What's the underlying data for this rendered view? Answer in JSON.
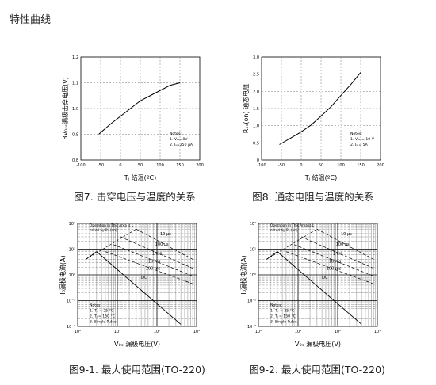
{
  "page": {
    "heading": "特性曲线"
  },
  "chart_data": [
    {
      "type": "line",
      "caption": "图7. 击穿电压与温度的关系",
      "xlabel": "Tⱼ 结温(ºC)",
      "ylabel": "BV₀ₛₛ漏极击穿电压(V)",
      "xlim": [
        -100,
        200
      ],
      "ylim": [
        0.8,
        1.2
      ],
      "xticks": [
        "-100",
        "-50",
        "0",
        "50",
        "100",
        "150",
        "200"
      ],
      "yticks": [
        "0.8",
        "0.9",
        "1.0",
        "1.1",
        "1.2"
      ],
      "notes": [
        "Notes:",
        "1. Vₑₛ=0V",
        "2. Iₛ=250 μA"
      ],
      "series": [
        {
          "x": [
            -55,
            -25,
            0,
            25,
            50,
            75,
            100,
            125,
            150
          ],
          "y": [
            0.9,
            0.94,
            0.97,
            1.0,
            1.03,
            1.05,
            1.07,
            1.09,
            1.1
          ]
        }
      ]
    },
    {
      "type": "line",
      "caption": "图8. 通态电阻与温度的关系",
      "xlabel": "Tⱼ 结温(ºC)",
      "ylabel": "Rₛₛ(on) 通态电阻",
      "xlim": [
        -100,
        200
      ],
      "ylim": [
        0,
        3.0
      ],
      "xticks": [
        "-100",
        "-50",
        "0",
        "50",
        "100",
        "150",
        "200"
      ],
      "yticks": [
        "0",
        "0.5",
        "1.0",
        "1.5",
        "2.0",
        "2.5",
        "3.0"
      ],
      "notes": [
        "Notes:",
        "1. Vₑₛ = 10 V",
        "2. Iₛ = 5A"
      ],
      "series": [
        {
          "x": [
            -55,
            -25,
            0,
            25,
            50,
            75,
            100,
            125,
            150
          ],
          "y": [
            0.45,
            0.65,
            0.82,
            1.02,
            1.28,
            1.55,
            1.88,
            2.2,
            2.55
          ]
        }
      ]
    },
    {
      "type": "line",
      "log_scale": true,
      "caption": "图9-1. 最大使用范围(TO-220)",
      "xlabel": "V₀ₛ 漏极电压(V)",
      "ylabel": "I₀漏极电流(A)",
      "xlim": [
        1,
        1000
      ],
      "ylim": [
        0.01,
        100
      ],
      "xticks": [
        "10⁰",
        "10¹",
        "10²",
        "10³"
      ],
      "yticks": [
        "10⁻²",
        "10⁻¹",
        "10⁰",
        "10¹",
        "10²"
      ],
      "annotation": "Operation in This Area is Limited by Rₛₛ(on)",
      "labels": [
        "10 μs",
        "100 μs",
        "1 ms",
        "10 ms",
        "100 ms",
        "DC"
      ],
      "notes": [
        "Notes:",
        "1. Tₑ = 25 °C",
        "2. Tⱼ = 150 °C",
        "3. Single Pulse"
      ]
    },
    {
      "type": "line",
      "log_scale": true,
      "caption": "图9-2. 最大使用范围(TO-220)",
      "xlabel": "V₀ₛ 漏极电压(V)",
      "ylabel": "I₀漏极电流(A)",
      "xlim": [
        1,
        1000
      ],
      "ylim": [
        0.01,
        100
      ],
      "xticks": [
        "10⁰",
        "10¹",
        "10²",
        "10³"
      ],
      "yticks": [
        "10⁻²",
        "10⁻¹",
        "10⁰",
        "10¹",
        "10²"
      ],
      "annotation": "Operation in This Area is Limited by Rₛₛ(on)",
      "labels": [
        "10 μs",
        "100 μs",
        "1 ms",
        "10 ms",
        "100 ms",
        "DC"
      ],
      "notes": [
        "Notes:",
        "1. Tₑ = 25 °C",
        "2. Tⱼ = 150 °C",
        "3. Single Pulse"
      ]
    }
  ]
}
